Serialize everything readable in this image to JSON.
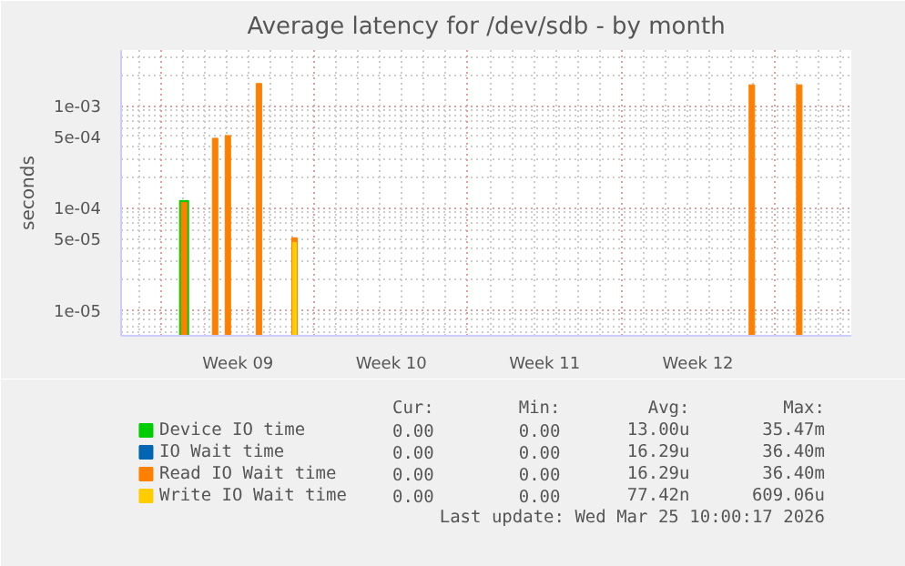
{
  "chart_data": {
    "type": "bar",
    "title": "Average latency for /dev/sdb - by month",
    "ylabel": "seconds",
    "x": [
      "2026-02-24T01:00",
      "2026-02-25T11:00",
      "2026-02-26T01:00",
      "2026-02-27T11:00",
      "2026-03-01T02:00",
      "2026-03-21T23:00",
      "2026-03-24T03:00"
    ],
    "series": [
      {
        "name": "Device IO time",
        "color": "#00cc00",
        "values": [
          0.000118,
          null,
          null,
          null,
          null,
          null,
          null
        ]
      },
      {
        "name": "IO Wait time",
        "color": "#0066b3",
        "values": [
          null,
          null,
          null,
          null,
          null,
          null,
          null
        ]
      },
      {
        "name": "Read IO Wait time",
        "color": "#ff8000",
        "values": [
          0.000113,
          0.00048,
          0.00051,
          0.00165,
          5.1e-05,
          0.0016,
          0.0016
        ]
      },
      {
        "name": "Write IO Wait time",
        "color": "#ffcc00",
        "values": [
          null,
          null,
          null,
          null,
          4.6e-05,
          null,
          null
        ]
      }
    ],
    "log": true,
    "ylim": [
      5.6e-06,
      0.0035
    ],
    "yticks": [
      {
        "value": 1e-05,
        "label": "1e-05"
      },
      {
        "value": 5e-05,
        "label": "5e-05"
      },
      {
        "value": 0.0001,
        "label": "1e-04"
      },
      {
        "value": 0.0005,
        "label": "5e-04"
      },
      {
        "value": 0.001,
        "label": "1e-03"
      }
    ],
    "xlim": [
      "2026-02-21T04:00",
      "2026-03-26T12:00"
    ],
    "xticks": [
      {
        "value": "2026-02-23",
        "label": null
      },
      {
        "value": "2026-02-26T12:00",
        "label": "Week 09"
      },
      {
        "value": "2026-03-02",
        "label": null
      },
      {
        "value": "2026-03-05T12:00",
        "label": "Week 10"
      },
      {
        "value": "2026-03-09",
        "label": null
      },
      {
        "value": "2026-03-12T12:00",
        "label": "Week 11"
      },
      {
        "value": "2026-03-16",
        "label": null
      },
      {
        "value": "2026-03-19T12:00",
        "label": "Week 12"
      },
      {
        "value": "2026-03-23",
        "label": null
      }
    ],
    "grid": true,
    "legend": "bottom",
    "annotations": [
      "Cur:",
      "Min:",
      "Avg:",
      "Max:",
      "0.00",
      "0.00",
      "13.00u",
      "35.47m",
      "0.00",
      "0.00",
      "16.29u",
      "36.40m",
      "0.00",
      "0.00",
      "16.29u",
      "36.40m",
      "0.00",
      "0.00",
      "77.42n",
      "609.06u",
      "Last update: Wed Mar 25 10:00:17 2026"
    ]
  }
}
